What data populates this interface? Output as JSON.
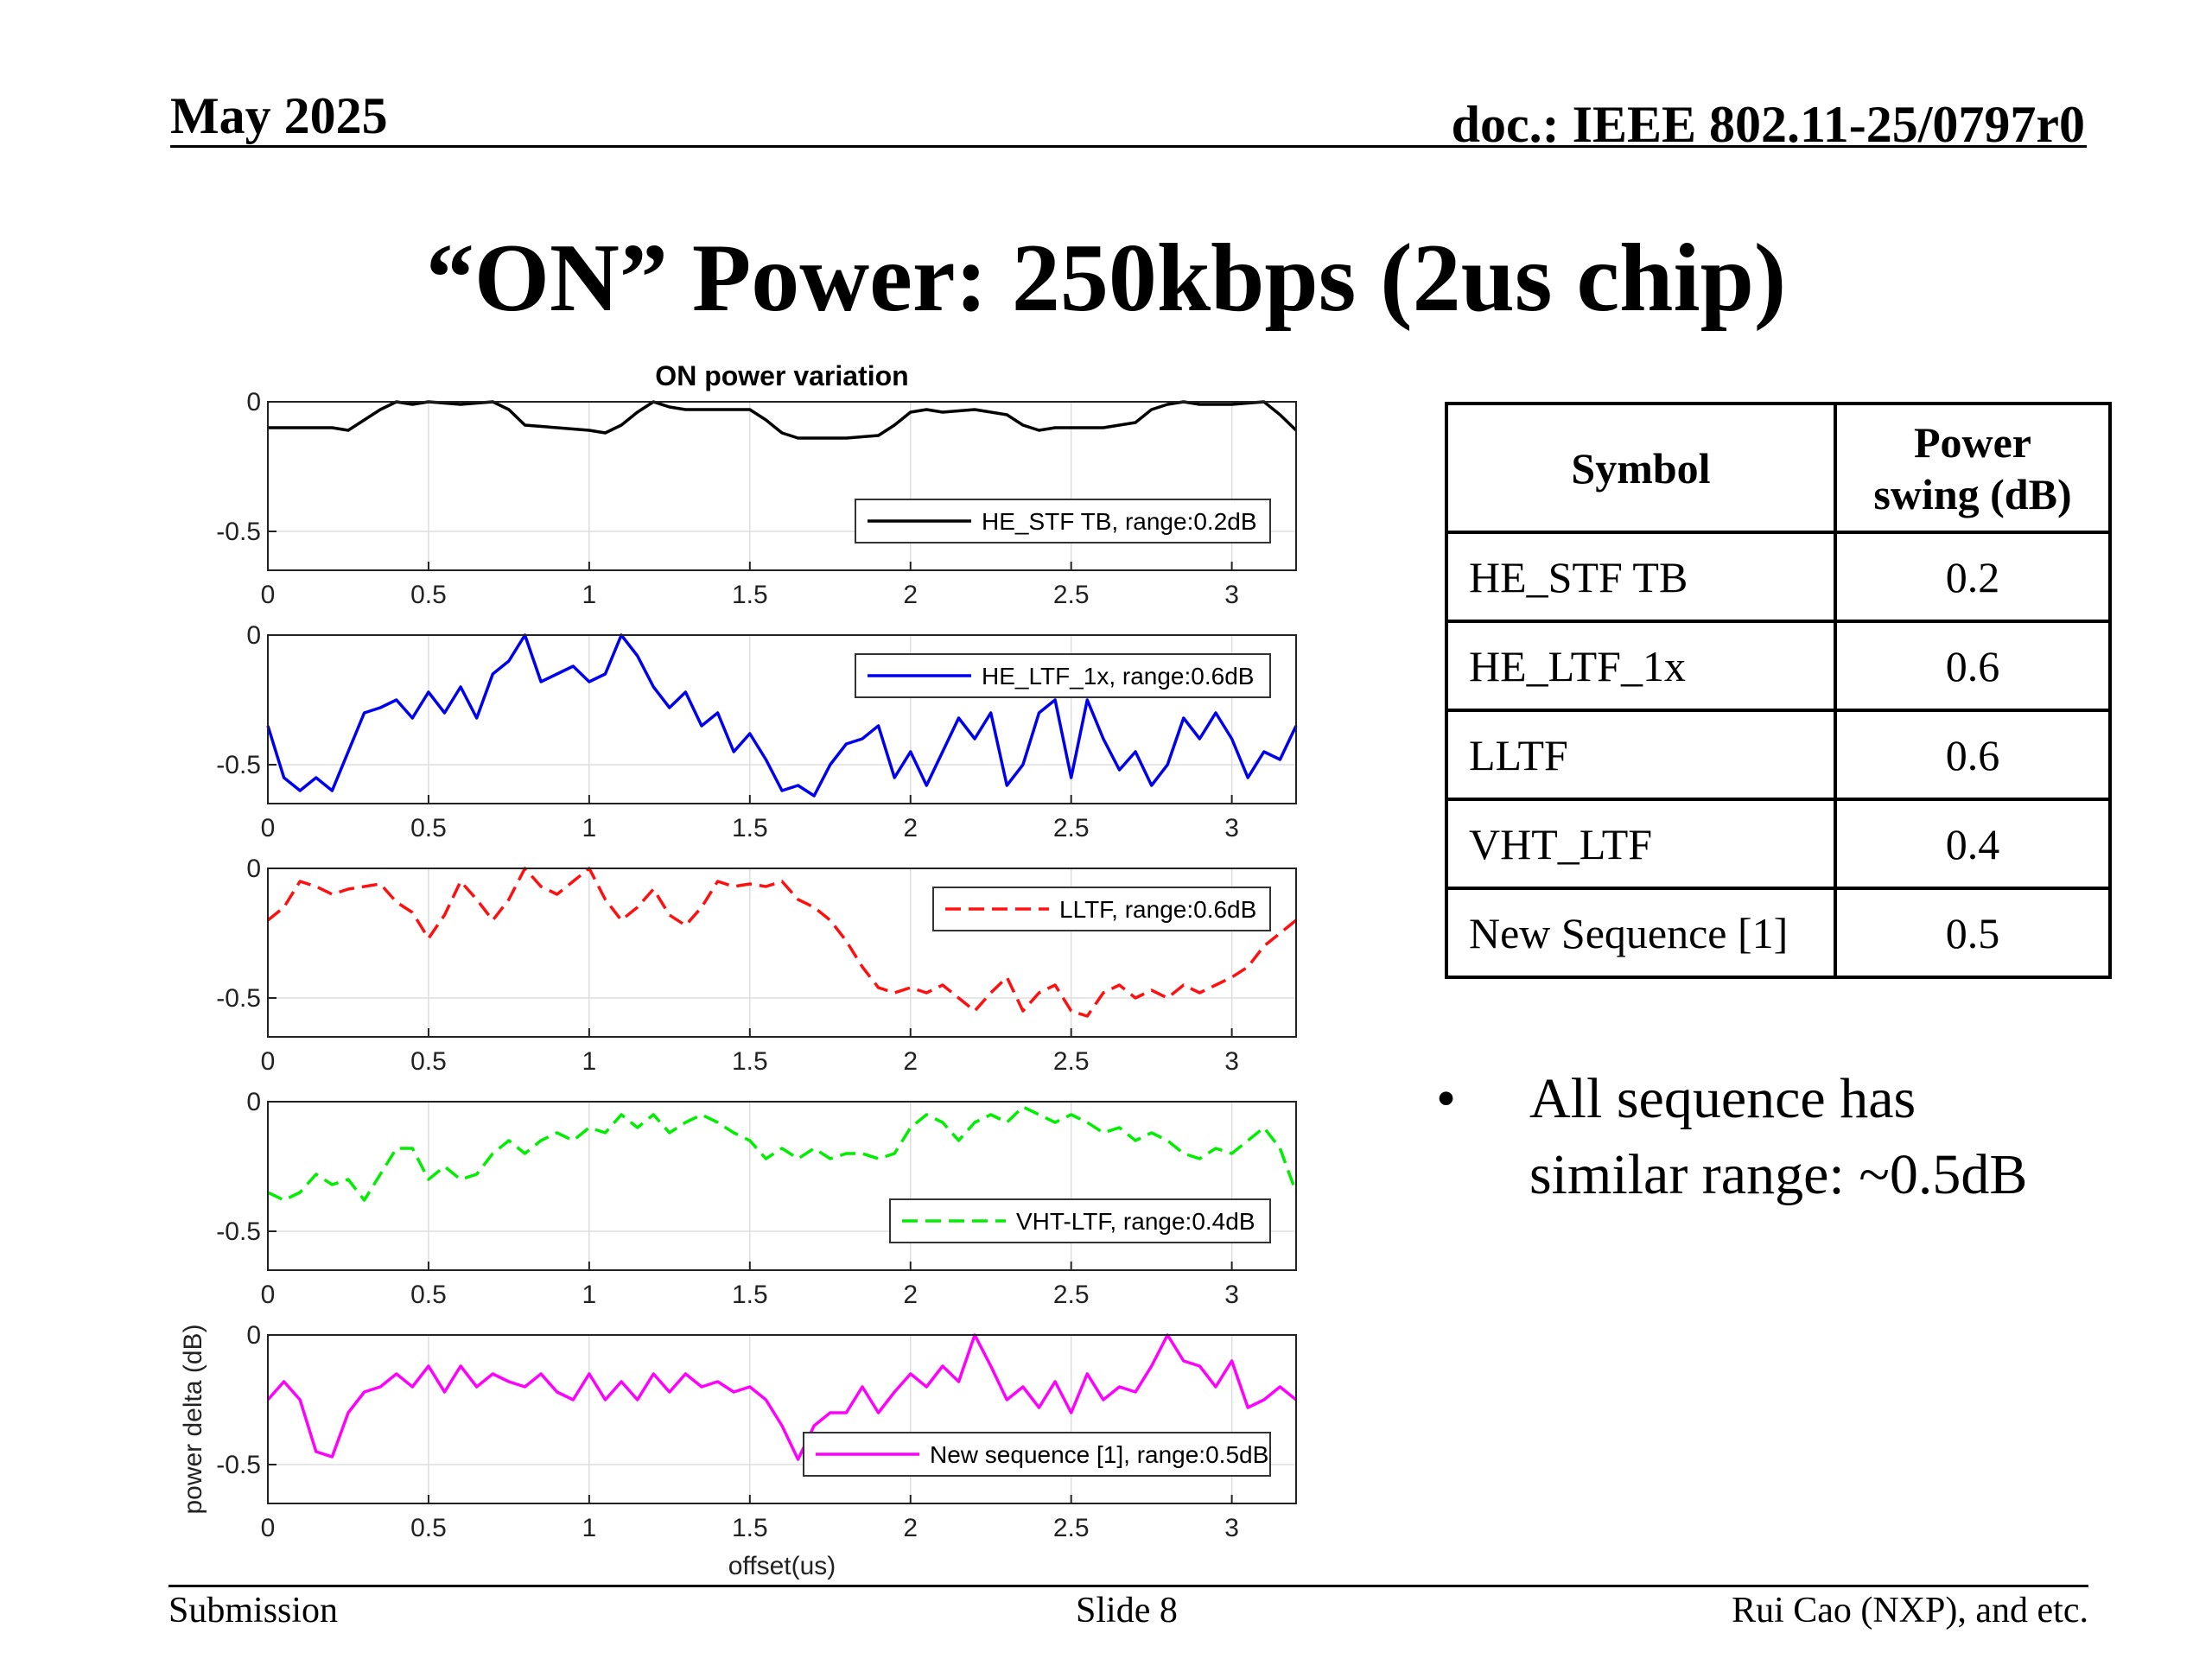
{
  "header": {
    "date": "May 2025",
    "doc": "doc.: IEEE 802.11-25/0797r0"
  },
  "title": "“ON” Power: 250kbps (2us chip)",
  "chart_data": {
    "type": "line",
    "title": "ON power variation",
    "xlabel": "offset(us)",
    "ylabel": "power delta (dB)",
    "xlim": [
      0,
      3.2
    ],
    "ylim": [
      -0.65,
      0
    ],
    "xticks": [
      "0",
      "0.5",
      "1",
      "1.5",
      "2",
      "2.5",
      "3"
    ],
    "yticks": [
      "0",
      "-0.5"
    ],
    "grid": true,
    "legend_position": "lower-right",
    "panels": [
      {
        "name": "HE_STF TB, range:0.2dB",
        "color": "#000000",
        "style": "solid",
        "x": [
          0,
          0.1,
          0.2,
          0.25,
          0.3,
          0.35,
          0.4,
          0.45,
          0.5,
          0.6,
          0.7,
          0.75,
          0.8,
          0.9,
          1.0,
          1.05,
          1.1,
          1.15,
          1.2,
          1.25,
          1.3,
          1.4,
          1.5,
          1.55,
          1.6,
          1.65,
          1.7,
          1.8,
          1.9,
          1.95,
          2.0,
          2.05,
          2.1,
          2.2,
          2.3,
          2.35,
          2.4,
          2.45,
          2.5,
          2.6,
          2.7,
          2.75,
          2.8,
          2.85,
          2.9,
          3.0,
          3.1,
          3.15,
          3.2
        ],
        "y": [
          -0.1,
          -0.1,
          -0.1,
          -0.11,
          -0.07,
          -0.03,
          0,
          -0.01,
          0,
          -0.01,
          0,
          -0.03,
          -0.09,
          -0.1,
          -0.11,
          -0.12,
          -0.09,
          -0.04,
          0,
          -0.02,
          -0.03,
          -0.03,
          -0.03,
          -0.07,
          -0.12,
          -0.14,
          -0.14,
          -0.14,
          -0.13,
          -0.09,
          -0.04,
          -0.03,
          -0.04,
          -0.03,
          -0.05,
          -0.09,
          -0.11,
          -0.1,
          -0.1,
          -0.1,
          -0.08,
          -0.03,
          -0.01,
          0,
          -0.01,
          -0.01,
          0,
          -0.05,
          -0.11
        ]
      },
      {
        "name": "HE_LTF_1x, range:0.6dB",
        "color": "#0000ee",
        "style": "solid",
        "x": [
          0,
          0.05,
          0.1,
          0.15,
          0.2,
          0.25,
          0.3,
          0.35,
          0.4,
          0.45,
          0.5,
          0.55,
          0.6,
          0.65,
          0.7,
          0.75,
          0.8,
          0.85,
          0.9,
          0.95,
          1.0,
          1.05,
          1.1,
          1.15,
          1.2,
          1.25,
          1.3,
          1.35,
          1.4,
          1.45,
          1.5,
          1.55,
          1.6,
          1.65,
          1.7,
          1.75,
          1.8,
          1.85,
          1.9,
          1.95,
          2.0,
          2.05,
          2.1,
          2.15,
          2.2,
          2.25,
          2.3,
          2.35,
          2.4,
          2.45,
          2.5,
          2.55,
          2.6,
          2.65,
          2.7,
          2.75,
          2.8,
          2.85,
          2.9,
          2.95,
          3.0,
          3.05,
          3.1,
          3.15,
          3.2
        ],
        "y": [
          -0.35,
          -0.55,
          -0.6,
          -0.55,
          -0.6,
          -0.45,
          -0.3,
          -0.28,
          -0.25,
          -0.32,
          -0.22,
          -0.3,
          -0.2,
          -0.32,
          -0.15,
          -0.1,
          0,
          -0.18,
          -0.15,
          -0.12,
          -0.18,
          -0.15,
          0,
          -0.08,
          -0.2,
          -0.28,
          -0.22,
          -0.35,
          -0.3,
          -0.45,
          -0.38,
          -0.48,
          -0.6,
          -0.58,
          -0.62,
          -0.5,
          -0.42,
          -0.4,
          -0.35,
          -0.55,
          -0.45,
          -0.58,
          -0.45,
          -0.32,
          -0.4,
          -0.3,
          -0.58,
          -0.5,
          -0.3,
          -0.25,
          -0.55,
          -0.25,
          -0.4,
          -0.52,
          -0.45,
          -0.58,
          -0.5,
          -0.32,
          -0.4,
          -0.3,
          -0.4,
          -0.55,
          -0.45,
          -0.48,
          -0.35
        ]
      },
      {
        "name": "LLTF, range:0.6dB",
        "color": "#ff1010",
        "style": "dashed",
        "x": [
          0,
          0.05,
          0.1,
          0.15,
          0.2,
          0.25,
          0.3,
          0.35,
          0.4,
          0.45,
          0.5,
          0.55,
          0.6,
          0.65,
          0.7,
          0.75,
          0.8,
          0.85,
          0.9,
          0.95,
          1.0,
          1.05,
          1.1,
          1.15,
          1.2,
          1.25,
          1.3,
          1.35,
          1.4,
          1.45,
          1.5,
          1.55,
          1.6,
          1.65,
          1.7,
          1.75,
          1.8,
          1.85,
          1.9,
          1.95,
          2.0,
          2.05,
          2.1,
          2.15,
          2.2,
          2.25,
          2.3,
          2.35,
          2.4,
          2.45,
          2.5,
          2.55,
          2.6,
          2.65,
          2.7,
          2.75,
          2.8,
          2.85,
          2.9,
          2.95,
          3.0,
          3.05,
          3.1,
          3.15,
          3.2
        ],
        "y": [
          -0.2,
          -0.15,
          -0.05,
          -0.07,
          -0.1,
          -0.08,
          -0.07,
          -0.06,
          -0.13,
          -0.17,
          -0.27,
          -0.18,
          -0.05,
          -0.12,
          -0.2,
          -0.12,
          0,
          -0.07,
          -0.1,
          -0.05,
          0,
          -0.12,
          -0.2,
          -0.15,
          -0.08,
          -0.18,
          -0.22,
          -0.15,
          -0.05,
          -0.07,
          -0.06,
          -0.07,
          -0.05,
          -0.12,
          -0.15,
          -0.2,
          -0.28,
          -0.38,
          -0.46,
          -0.48,
          -0.46,
          -0.48,
          -0.45,
          -0.5,
          -0.55,
          -0.48,
          -0.42,
          -0.55,
          -0.48,
          -0.45,
          -0.55,
          -0.57,
          -0.48,
          -0.45,
          -0.5,
          -0.47,
          -0.5,
          -0.45,
          -0.48,
          -0.45,
          -0.42,
          -0.38,
          -0.3,
          -0.25,
          -0.2
        ]
      },
      {
        "name": "VHT-LTF, range:0.4dB",
        "color": "#00ee00",
        "style": "dashed",
        "x": [
          0,
          0.05,
          0.1,
          0.15,
          0.2,
          0.25,
          0.3,
          0.35,
          0.4,
          0.45,
          0.5,
          0.55,
          0.6,
          0.65,
          0.7,
          0.75,
          0.8,
          0.85,
          0.9,
          0.95,
          1.0,
          1.05,
          1.1,
          1.15,
          1.2,
          1.25,
          1.3,
          1.35,
          1.4,
          1.45,
          1.5,
          1.55,
          1.6,
          1.65,
          1.7,
          1.75,
          1.8,
          1.85,
          1.9,
          1.95,
          2.0,
          2.05,
          2.1,
          2.15,
          2.2,
          2.25,
          2.3,
          2.35,
          2.4,
          2.45,
          2.5,
          2.55,
          2.6,
          2.65,
          2.7,
          2.75,
          2.8,
          2.85,
          2.9,
          2.95,
          3.0,
          3.05,
          3.1,
          3.15,
          3.2
        ],
        "y": [
          -0.35,
          -0.38,
          -0.35,
          -0.28,
          -0.32,
          -0.3,
          -0.38,
          -0.28,
          -0.18,
          -0.18,
          -0.3,
          -0.25,
          -0.3,
          -0.28,
          -0.2,
          -0.15,
          -0.2,
          -0.15,
          -0.12,
          -0.15,
          -0.1,
          -0.12,
          -0.05,
          -0.1,
          -0.05,
          -0.12,
          -0.08,
          -0.05,
          -0.08,
          -0.12,
          -0.15,
          -0.22,
          -0.18,
          -0.22,
          -0.18,
          -0.22,
          -0.2,
          -0.2,
          -0.22,
          -0.2,
          -0.1,
          -0.05,
          -0.08,
          -0.15,
          -0.08,
          -0.05,
          -0.08,
          -0.02,
          -0.05,
          -0.08,
          -0.05,
          -0.08,
          -0.12,
          -0.1,
          -0.15,
          -0.12,
          -0.15,
          -0.2,
          -0.22,
          -0.18,
          -0.2,
          -0.15,
          -0.1,
          -0.18,
          -0.35
        ]
      },
      {
        "name": "New sequence [1], range:0.5dB",
        "color": "#ff00ff",
        "style": "solid",
        "x": [
          0,
          0.05,
          0.1,
          0.15,
          0.2,
          0.25,
          0.3,
          0.35,
          0.4,
          0.45,
          0.5,
          0.55,
          0.6,
          0.65,
          0.7,
          0.75,
          0.8,
          0.85,
          0.9,
          0.95,
          1.0,
          1.05,
          1.1,
          1.15,
          1.2,
          1.25,
          1.3,
          1.35,
          1.4,
          1.45,
          1.5,
          1.55,
          1.6,
          1.65,
          1.7,
          1.75,
          1.8,
          1.85,
          1.9,
          1.95,
          2.0,
          2.05,
          2.1,
          2.15,
          2.2,
          2.25,
          2.3,
          2.35,
          2.4,
          2.45,
          2.5,
          2.55,
          2.6,
          2.65,
          2.7,
          2.75,
          2.8,
          2.85,
          2.9,
          2.95,
          3.0,
          3.05,
          3.1,
          3.15,
          3.2
        ],
        "y": [
          -0.25,
          -0.18,
          -0.25,
          -0.45,
          -0.47,
          -0.3,
          -0.22,
          -0.2,
          -0.15,
          -0.2,
          -0.12,
          -0.22,
          -0.12,
          -0.2,
          -0.15,
          -0.18,
          -0.2,
          -0.15,
          -0.22,
          -0.25,
          -0.15,
          -0.25,
          -0.18,
          -0.25,
          -0.15,
          -0.22,
          -0.15,
          -0.2,
          -0.18,
          -0.22,
          -0.2,
          -0.25,
          -0.35,
          -0.48,
          -0.35,
          -0.3,
          -0.3,
          -0.2,
          -0.3,
          -0.22,
          -0.15,
          -0.2,
          -0.12,
          -0.18,
          0,
          -0.12,
          -0.25,
          -0.2,
          -0.28,
          -0.18,
          -0.3,
          -0.15,
          -0.25,
          -0.2,
          -0.22,
          -0.12,
          0,
          -0.1,
          -0.12,
          -0.2,
          -0.1,
          -0.28,
          -0.25,
          -0.2,
          -0.25
        ]
      }
    ]
  },
  "table": {
    "headers": [
      "Symbol",
      "Power swing (dB)"
    ],
    "header_lines": [
      [
        "Symbol"
      ],
      [
        "Power",
        "swing (dB)"
      ]
    ],
    "rows": [
      {
        "symbol": "HE_STF TB",
        "swing": "0.2"
      },
      {
        "symbol": "HE_LTF_1x",
        "swing": "0.6"
      },
      {
        "symbol": "LLTF",
        "swing": "0.6"
      },
      {
        "symbol": "VHT_LTF",
        "swing": "0.4"
      },
      {
        "symbol": "New Sequence [1]",
        "swing": "0.5"
      }
    ]
  },
  "bullet": {
    "marker": "•",
    "lines": [
      "All sequence has",
      "similar range: ~0.5dB"
    ]
  },
  "footer": {
    "left": "Submission",
    "center": "Slide 8",
    "right": "Rui Cao (NXP), and etc."
  }
}
